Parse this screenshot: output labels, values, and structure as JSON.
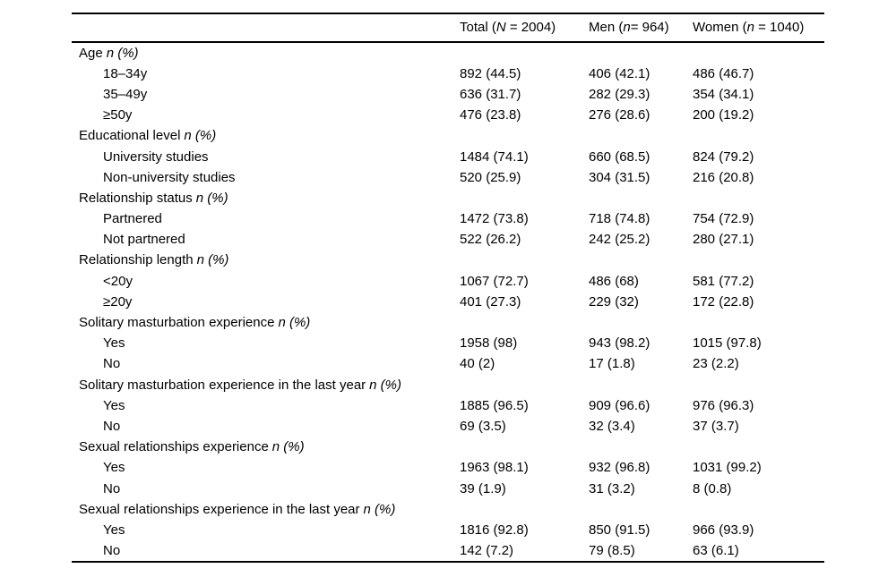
{
  "table": {
    "header": {
      "stub": "",
      "total": {
        "pre": "Total (",
        "var": "N",
        "post": " = 2004)"
      },
      "men": {
        "pre": "Men (",
        "var": "n",
        "post": "= 964)"
      },
      "women": {
        "pre": "Women (",
        "var": "n",
        "post": " = 1040)"
      }
    },
    "rows": [
      {
        "type": "section",
        "label": "Age",
        "stat": "n (%)"
      },
      {
        "type": "data",
        "label": "18–34y",
        "total": "892 (44.5)",
        "men": "406 (42.1)",
        "women": "486 (46.7)"
      },
      {
        "type": "data",
        "label": "35–49y",
        "total": "636 (31.7)",
        "men": "282 (29.3)",
        "women": "354 (34.1)"
      },
      {
        "type": "data",
        "label": "≥50y",
        "total": "476 (23.8)",
        "men": "276 (28.6)",
        "women": "200 (19.2)"
      },
      {
        "type": "section",
        "label": "Educational level",
        "stat": "n (%)"
      },
      {
        "type": "data",
        "label": "University studies",
        "total": "1484 (74.1)",
        "men": "660 (68.5)",
        "women": "824 (79.2)"
      },
      {
        "type": "data",
        "label": "Non-university studies",
        "total": "520 (25.9)",
        "men": "304 (31.5)",
        "women": "216 (20.8)"
      },
      {
        "type": "section",
        "label": "Relationship status",
        "stat": "n (%)"
      },
      {
        "type": "data",
        "label": "Partnered",
        "total": "1472 (73.8)",
        "men": "718 (74.8)",
        "women": "754 (72.9)"
      },
      {
        "type": "data",
        "label": "Not partnered",
        "total": "522 (26.2)",
        "men": "242 (25.2)",
        "women": "280 (27.1)"
      },
      {
        "type": "section",
        "label": "Relationship length",
        "stat": "n (%)"
      },
      {
        "type": "data",
        "label": "<20y",
        "total": "1067 (72.7)",
        "men": "486 (68)",
        "women": "581 (77.2)"
      },
      {
        "type": "data",
        "label": "≥20y",
        "total": "401 (27.3)",
        "men": "229 (32)",
        "women": "172 (22.8)"
      },
      {
        "type": "section",
        "label": "Solitary masturbation experience",
        "stat": "n (%)"
      },
      {
        "type": "data",
        "label": "Yes",
        "total": "1958 (98)",
        "men": "943 (98.2)",
        "women": "1015 (97.8)"
      },
      {
        "type": "data",
        "label": "No",
        "total": "40 (2)",
        "men": "17 (1.8)",
        "women": "23 (2.2)"
      },
      {
        "type": "section",
        "label": "Solitary masturbation experience in the last year",
        "stat": "n (%)"
      },
      {
        "type": "data",
        "label": "Yes",
        "total": "1885 (96.5)",
        "men": "909 (96.6)",
        "women": "976 (96.3)"
      },
      {
        "type": "data",
        "label": "No",
        "total": "69 (3.5)",
        "men": "32 (3.4)",
        "women": "37 (3.7)"
      },
      {
        "type": "section",
        "label": "Sexual relationships experience",
        "stat": "n (%)"
      },
      {
        "type": "data",
        "label": "Yes",
        "total": "1963 (98.1)",
        "men": "932 (96.8)",
        "women": "1031 (99.2)"
      },
      {
        "type": "data",
        "label": "No",
        "total": "39 (1.9)",
        "men": "31 (3.2)",
        "women": "8 (0.8)"
      },
      {
        "type": "section",
        "label": "Sexual relationships experience in the last year",
        "stat": "n (%)"
      },
      {
        "type": "data",
        "label": "Yes",
        "total": "1816 (92.8)",
        "men": "850 (91.5)",
        "women": "966 (93.9)"
      },
      {
        "type": "data",
        "label": "No",
        "total": "142 (7.2)",
        "men": "79 (8.5)",
        "women": "63 (6.1)"
      }
    ]
  }
}
